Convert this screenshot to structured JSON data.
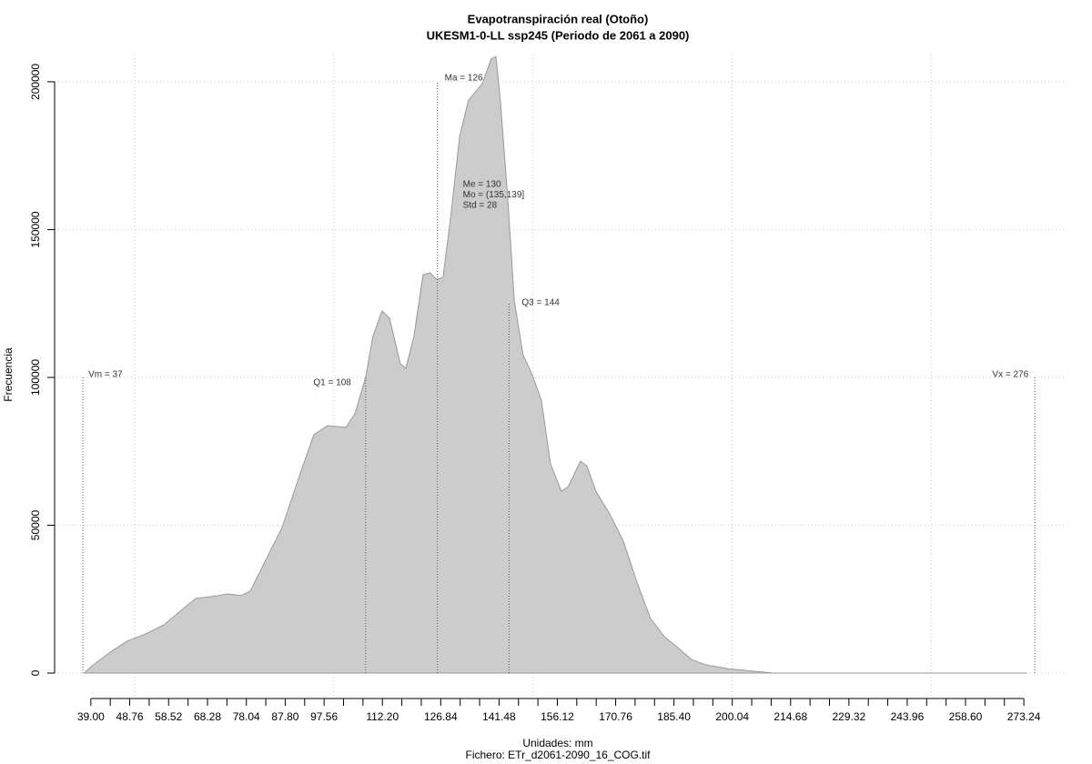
{
  "chart_data": {
    "type": "area",
    "title": "Evapotranspiración real (Otoño)",
    "subtitle": "UKESM1-0-LL ssp245 (Periodo de 2061 a 2090)",
    "xlabel": "Unidades: mm",
    "caption": "Fichero: ETr_d2061-2090_16_COG.tif",
    "ylabel": "Frecuencia",
    "color": "#cccccc",
    "edge_color": "#999999",
    "x": [
      37.4,
      39,
      43.6,
      48.1,
      52.7,
      57.3,
      61.9,
      65.3,
      71.0,
      73.3,
      76.7,
      79.0,
      82.4,
      87.0,
      91.6,
      95.0,
      98.4,
      103.0,
      105.3,
      108.0,
      109.8,
      112.1,
      114.0,
      116.7,
      118.1,
      120.1,
      122.4,
      124.2,
      125.8,
      127.4,
      129.3,
      131.6,
      133.8,
      137.3,
      139.5,
      140.7,
      141.8,
      143.7,
      145.3,
      147.5,
      149.8,
      152.1,
      154.4,
      157.1,
      158.9,
      161.9,
      163.5,
      165.8,
      169.3,
      172.7,
      176.1,
      179.5,
      183.0,
      186.4,
      189.8,
      193.3,
      199.0,
      210.4,
      273.9
    ],
    "y": [
      0,
      2150,
      6800,
      10800,
      13200,
      16300,
      21500,
      25200,
      26200,
      26800,
      26200,
      27700,
      36900,
      49200,
      67700,
      80600,
      83700,
      83100,
      87700,
      100000,
      113800,
      122500,
      120000,
      104600,
      103100,
      113800,
      134800,
      135400,
      133200,
      133800,
      153800,
      181500,
      193800,
      199400,
      207700,
      208600,
      193800,
      160000,
      126100,
      107700,
      100900,
      92300,
      70800,
      61500,
      63100,
      71700,
      70100,
      61500,
      53800,
      44600,
      30800,
      18500,
      12300,
      8600,
      4600,
      2800,
      1500,
      0,
      0
    ],
    "xlim": [
      29.9,
      283.5
    ],
    "ylim": [
      -8600,
      209200
    ],
    "xticks": [
      {
        "value": 39.0,
        "label": "39.00"
      },
      {
        "value": 48.76,
        "label": "48.76"
      },
      {
        "value": 58.52,
        "label": "58.52"
      },
      {
        "value": 68.28,
        "label": "68.28"
      },
      {
        "value": 78.04,
        "label": "78.04"
      },
      {
        "value": 87.8,
        "label": "87.80"
      },
      {
        "value": 97.56,
        "label": "97.56"
      },
      {
        "value": 112.2,
        "label": "112.20"
      },
      {
        "value": 126.84,
        "label": "126.84"
      },
      {
        "value": 141.48,
        "label": "141.48"
      },
      {
        "value": 156.12,
        "label": "156.12"
      },
      {
        "value": 170.76,
        "label": "170.76"
      },
      {
        "value": 185.4,
        "label": "185.40"
      },
      {
        "value": 200.04,
        "label": "200.04"
      },
      {
        "value": 214.68,
        "label": "214.68"
      },
      {
        "value": 229.32,
        "label": "229.32"
      },
      {
        "value": 243.96,
        "label": "243.96"
      },
      {
        "value": 258.6,
        "label": "258.60"
      },
      {
        "value": 273.24,
        "label": "273.24"
      }
    ],
    "xminor_ticks": [
      43.88,
      53.64,
      63.4,
      73.16,
      82.92,
      92.68,
      102.44,
      107.32,
      117.08,
      121.96,
      131.72,
      136.6,
      146.36,
      151.24,
      161,
      165.88,
      175.64,
      180.52,
      190.28,
      195.16,
      204.92,
      209.8,
      219.56,
      224.44,
      234.2,
      239.08,
      248.84,
      253.72,
      263.48,
      268.36
    ],
    "xgrid": [
      50,
      100,
      150,
      200,
      250
    ],
    "yticks": [
      0,
      50000,
      100000,
      150000,
      200000
    ],
    "grid": true,
    "markers": [
      {
        "label": "Vm = 37",
        "x": 37,
        "top": 100000
      },
      {
        "label": "Q1 = 108",
        "x": 108,
        "top": 100000
      },
      {
        "label": "Ma = 126",
        "x": 126,
        "top": 200000
      },
      {
        "label": "Q3 = 144",
        "x": 144,
        "top": 125000
      },
      {
        "label": "Vx = 276",
        "x": 276,
        "top": 100000
      }
    ],
    "stats": [
      "Me = 130",
      "Mo = (135,139]",
      "Std = 28"
    ]
  }
}
